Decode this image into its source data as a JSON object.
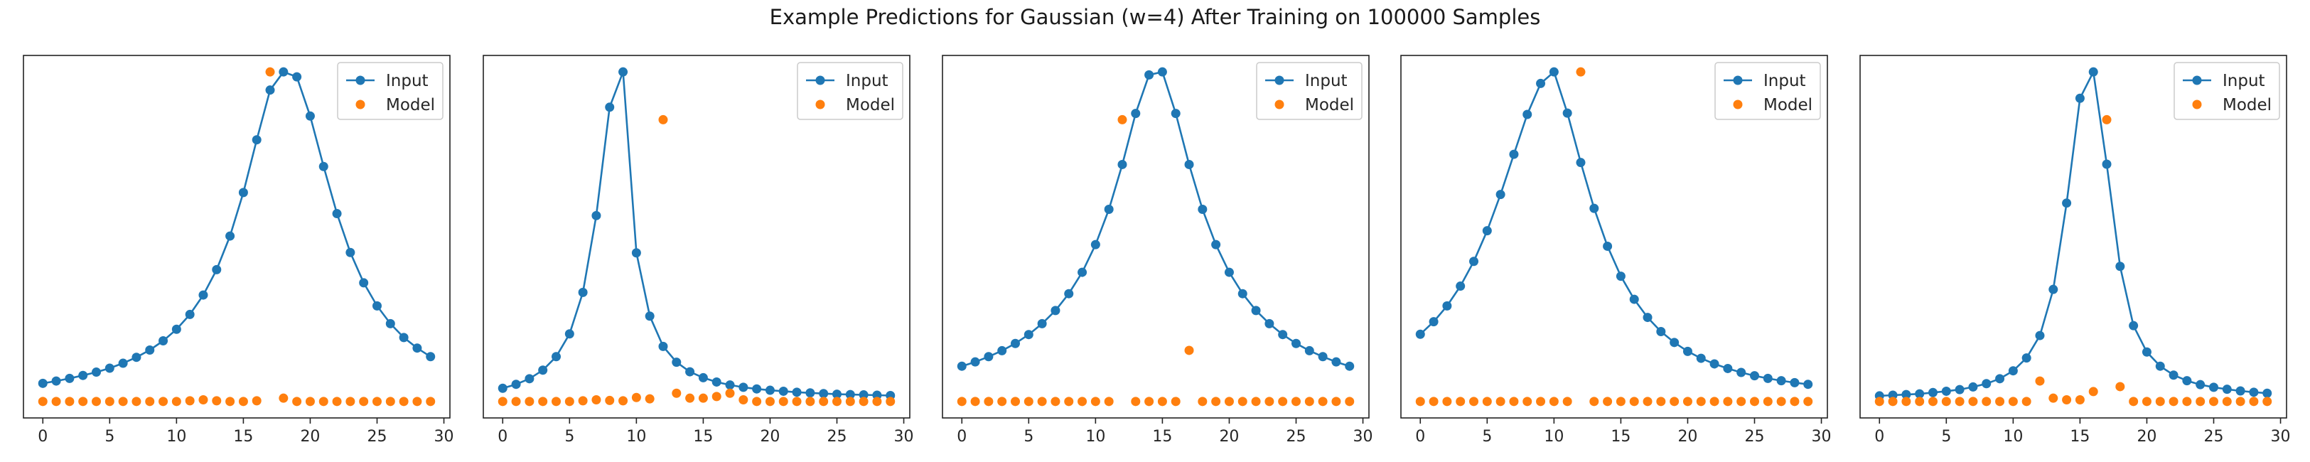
{
  "figure": {
    "title": "Example Predictions for Gaussian (w=4) After Training on 100000 Samples"
  },
  "colors": {
    "input": "#1f77b4",
    "model": "#ff7f0e",
    "axes": "#222222"
  },
  "chart_data": [
    {
      "type": "line",
      "xlim": [
        -1.45,
        30.45
      ],
      "ylim": [
        -0.05,
        1.05
      ],
      "xticks": [
        0,
        5,
        10,
        15,
        20,
        25,
        30
      ],
      "legend": "top-right",
      "grid": false,
      "series": [
        {
          "name": "Input",
          "style": "line-with-markers",
          "x": [
            0,
            1,
            2,
            3,
            4,
            5,
            6,
            7,
            8,
            9,
            10,
            11,
            12,
            13,
            14,
            15,
            16,
            17,
            18,
            19,
            20,
            21,
            22,
            23,
            24,
            25,
            26,
            27,
            28,
            29
          ],
          "y": [
            0.055,
            0.062,
            0.07,
            0.079,
            0.089,
            0.101,
            0.116,
            0.134,
            0.156,
            0.184,
            0.219,
            0.264,
            0.323,
            0.4,
            0.502,
            0.634,
            0.794,
            0.945,
            1.0,
            0.985,
            0.866,
            0.713,
            0.57,
            0.452,
            0.36,
            0.29,
            0.236,
            0.194,
            0.162,
            0.136
          ]
        },
        {
          "name": "Model",
          "style": "markers",
          "x": [
            0,
            1,
            2,
            3,
            4,
            5,
            6,
            7,
            8,
            9,
            10,
            11,
            12,
            13,
            14,
            15,
            16,
            17,
            18,
            19,
            20,
            21,
            22,
            23,
            24,
            25,
            26,
            27,
            28,
            29
          ],
          "y": [
            0,
            0,
            0,
            0,
            0,
            0,
            0,
            0,
            0,
            0,
            0,
            0.002,
            0.005,
            0.002,
            0,
            0,
            0.002,
            1.0,
            0.01,
            0,
            0,
            0,
            0,
            0,
            0,
            0,
            0,
            0,
            0,
            0
          ]
        }
      ]
    },
    {
      "type": "line",
      "xlim": [
        -1.45,
        30.45
      ],
      "ylim": [
        -0.05,
        1.05
      ],
      "xticks": [
        0,
        5,
        10,
        15,
        20,
        25,
        30
      ],
      "legend": "top-right",
      "grid": false,
      "series": [
        {
          "name": "Input",
          "style": "line-with-markers",
          "x": [
            0,
            1,
            2,
            3,
            4,
            5,
            6,
            7,
            8,
            9,
            10,
            11,
            12,
            13,
            14,
            15,
            16,
            17,
            18,
            19,
            20,
            21,
            22,
            23,
            24,
            25,
            26,
            27,
            28,
            29
          ],
          "y": [
            0.04,
            0.052,
            0.069,
            0.095,
            0.136,
            0.205,
            0.331,
            0.564,
            0.893,
            1.0,
            0.451,
            0.259,
            0.167,
            0.119,
            0.09,
            0.072,
            0.059,
            0.05,
            0.043,
            0.038,
            0.034,
            0.031,
            0.028,
            0.026,
            0.024,
            0.022,
            0.021,
            0.02,
            0.019,
            0.018
          ]
        },
        {
          "name": "Model",
          "style": "markers",
          "x": [
            0,
            1,
            2,
            3,
            4,
            5,
            6,
            7,
            8,
            9,
            10,
            11,
            12,
            13,
            14,
            15,
            16,
            17,
            18,
            19,
            20,
            21,
            22,
            23,
            24,
            25,
            26,
            27,
            28,
            29
          ],
          "y": [
            0,
            0,
            0,
            0,
            0,
            0,
            0.002,
            0.005,
            0.003,
            0.002,
            0.012,
            0.008,
            0.855,
            0.025,
            0.01,
            0.01,
            0.015,
            0.025,
            0.005,
            0,
            0,
            0,
            0,
            0,
            0,
            0,
            0,
            0,
            0,
            0
          ]
        }
      ]
    },
    {
      "type": "line",
      "xlim": [
        -1.45,
        30.45
      ],
      "ylim": [
        -0.05,
        1.05
      ],
      "xticks": [
        0,
        5,
        10,
        15,
        20,
        25,
        30
      ],
      "legend": "top-right",
      "grid": false,
      "series": [
        {
          "name": "Input",
          "style": "line-with-markers",
          "x": [
            0,
            1,
            2,
            3,
            4,
            5,
            6,
            7,
            8,
            9,
            10,
            11,
            12,
            13,
            14,
            15,
            16,
            17,
            18,
            19,
            20,
            21,
            22,
            23,
            24,
            25,
            26,
            27,
            28,
            29
          ],
          "y": [
            0.107,
            0.12,
            0.136,
            0.154,
            0.176,
            0.203,
            0.236,
            0.276,
            0.327,
            0.392,
            0.476,
            0.583,
            0.719,
            0.874,
            0.991,
            1.0,
            0.874,
            0.719,
            0.583,
            0.476,
            0.392,
            0.327,
            0.276,
            0.236,
            0.203,
            0.176,
            0.154,
            0.136,
            0.12,
            0.107
          ]
        },
        {
          "name": "Model",
          "style": "markers",
          "x": [
            0,
            1,
            2,
            3,
            4,
            5,
            6,
            7,
            8,
            9,
            10,
            11,
            12,
            13,
            14,
            15,
            16,
            17,
            18,
            19,
            20,
            21,
            22,
            23,
            24,
            25,
            26,
            27,
            28,
            29
          ],
          "y": [
            0,
            0,
            0,
            0,
            0,
            0,
            0,
            0,
            0,
            0,
            0,
            0,
            0.855,
            0,
            0,
            0,
            0,
            0.155,
            0,
            0,
            0,
            0,
            0,
            0,
            0,
            0,
            0,
            0,
            0,
            0
          ]
        }
      ]
    },
    {
      "type": "line",
      "xlim": [
        -1.45,
        30.45
      ],
      "ylim": [
        -0.05,
        1.05
      ],
      "xticks": [
        0,
        5,
        10,
        15,
        20,
        25,
        30
      ],
      "legend": "top-right",
      "grid": false,
      "series": [
        {
          "name": "Input",
          "style": "line-with-markers",
          "x": [
            0,
            1,
            2,
            3,
            4,
            5,
            6,
            7,
            8,
            9,
            10,
            11,
            12,
            13,
            14,
            15,
            16,
            17,
            18,
            19,
            20,
            21,
            22,
            23,
            24,
            25,
            26,
            27,
            28,
            29
          ],
          "y": [
            0.204,
            0.242,
            0.29,
            0.35,
            0.425,
            0.518,
            0.628,
            0.75,
            0.871,
            0.965,
            1.0,
            0.875,
            0.725,
            0.586,
            0.471,
            0.38,
            0.31,
            0.255,
            0.212,
            0.179,
            0.152,
            0.131,
            0.114,
            0.1,
            0.088,
            0.078,
            0.07,
            0.063,
            0.057,
            0.052
          ]
        },
        {
          "name": "Model",
          "style": "markers",
          "x": [
            0,
            1,
            2,
            3,
            4,
            5,
            6,
            7,
            8,
            9,
            10,
            11,
            12,
            13,
            14,
            15,
            16,
            17,
            18,
            19,
            20,
            21,
            22,
            23,
            24,
            25,
            26,
            27,
            28,
            29
          ],
          "y": [
            0,
            0,
            0,
            0,
            0,
            0,
            0,
            0,
            0,
            0,
            0,
            0,
            1.0,
            0,
            0,
            0,
            0,
            0,
            0,
            0,
            0,
            0,
            0,
            0,
            0,
            0,
            0,
            0,
            0,
            0
          ]
        }
      ]
    },
    {
      "type": "line",
      "xlim": [
        -1.45,
        30.45
      ],
      "ylim": [
        -0.05,
        1.05
      ],
      "xticks": [
        0,
        5,
        10,
        15,
        20,
        25,
        30
      ],
      "legend": "top-right",
      "grid": false,
      "series": [
        {
          "name": "Input",
          "style": "line-with-markers",
          "x": [
            0,
            1,
            2,
            3,
            4,
            5,
            6,
            7,
            8,
            9,
            10,
            11,
            12,
            13,
            14,
            15,
            16,
            17,
            18,
            19,
            20,
            21,
            22,
            23,
            24,
            25,
            26,
            27,
            28,
            29
          ],
          "y": [
            0.017,
            0.019,
            0.021,
            0.023,
            0.027,
            0.031,
            0.036,
            0.044,
            0.054,
            0.069,
            0.093,
            0.132,
            0.2,
            0.34,
            0.602,
            0.92,
            1.0,
            0.72,
            0.41,
            0.23,
            0.15,
            0.107,
            0.08,
            0.063,
            0.051,
            0.043,
            0.037,
            0.032,
            0.028,
            0.025
          ]
        },
        {
          "name": "Model",
          "style": "markers",
          "x": [
            0,
            1,
            2,
            3,
            4,
            5,
            6,
            7,
            8,
            9,
            10,
            11,
            12,
            13,
            14,
            15,
            16,
            17,
            18,
            19,
            20,
            21,
            22,
            23,
            24,
            25,
            26,
            27,
            28,
            29
          ],
          "y": [
            0,
            0,
            0,
            0,
            0,
            0,
            0,
            0,
            0,
            0,
            0,
            0,
            0.062,
            0.01,
            0.005,
            0.005,
            0.03,
            0.855,
            0.045,
            0,
            0,
            0,
            0,
            0,
            0,
            0,
            0,
            0,
            0,
            0
          ]
        }
      ]
    }
  ]
}
